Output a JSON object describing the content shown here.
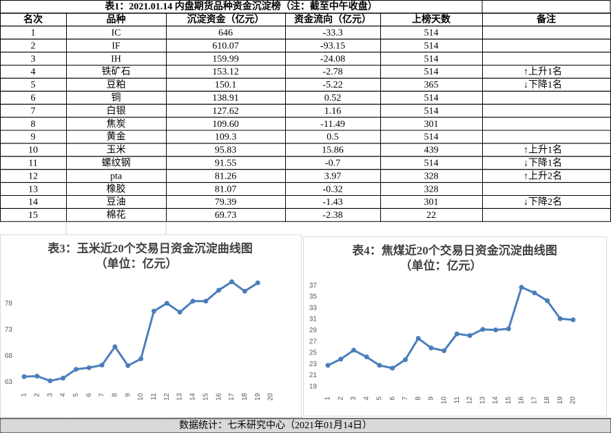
{
  "table": {
    "title": "表1：2021.01.14 内盘期货品种资金沉淀榜（注：截至中午收盘）",
    "header": [
      "名次",
      "品种",
      "沉淀资金（亿元）",
      "资金流向（亿元）",
      "上榜天数",
      "备注"
    ],
    "rows": [
      [
        "1",
        "IC",
        "646",
        "-33.3",
        "514",
        null
      ],
      [
        "2",
        "IF",
        "610.07",
        "-93.15",
        "514",
        null
      ],
      [
        "3",
        "IH",
        "159.99",
        "-24.08",
        "514",
        null
      ],
      [
        "4",
        "铁矿石",
        "153.12",
        "-2.78",
        "514",
        "↑上升1名"
      ],
      [
        "5",
        "豆粕",
        "150.1",
        "-5.22",
        "365",
        "↓下降1名"
      ],
      [
        "6",
        "铜",
        "138.91",
        "0.52",
        "514",
        null
      ],
      [
        "7",
        "白银",
        "127.62",
        "1.16",
        "514",
        null
      ],
      [
        "8",
        "焦炭",
        "109.60",
        "-11.49",
        "301",
        null
      ],
      [
        "9",
        "黄金",
        "109.3",
        "0.5",
        "514",
        null
      ],
      [
        "10",
        "玉米",
        "95.83",
        "15.86",
        "439",
        "↑上升1名"
      ],
      [
        "11",
        "螺纹钢",
        "91.55",
        "-0.7",
        "514",
        "↓下降1名"
      ],
      [
        "12",
        "pta",
        "81.26",
        "3.97",
        "328",
        "↑上升2名"
      ],
      [
        "13",
        "橡胶",
        "81.07",
        "-0.32",
        "328",
        null
      ],
      [
        "14",
        "豆油",
        "79.39",
        "-1.43",
        "301",
        "↓下降2名"
      ],
      [
        "15",
        "棉花",
        "69.73",
        "-2.38",
        "22",
        null
      ]
    ]
  },
  "chart_data": [
    {
      "type": "line",
      "title": "表3：玉米近20个交易日资金沉淀曲线图",
      "subtitle": "（单位：亿元）",
      "categories": [
        "1",
        "2",
        "3",
        "4",
        "5",
        "6",
        "7",
        "8",
        "9",
        "10",
        "11",
        "12",
        "13",
        "14",
        "15",
        "16",
        "17",
        "18",
        "19",
        "20"
      ],
      "values": [
        64.1,
        64.2,
        63.3,
        63.8,
        65.5,
        65.8,
        66.3,
        69.8,
        66.2,
        67.5,
        76.6,
        78.1,
        76.4,
        78.5,
        78.5,
        80.6,
        82.2,
        80.4,
        82.0,
        null
      ],
      "color": "#4a7ebb",
      "ylim": [
        61.5,
        84
      ],
      "yticks": [
        63,
        68,
        73,
        78
      ],
      "grid": false
    },
    {
      "type": "line",
      "title": "表4：焦煤近20个交易日资金沉淀曲线图",
      "subtitle": "（单位：亿元）",
      "categories": [
        "1",
        "2",
        "3",
        "4",
        "5",
        "6",
        "7",
        "8",
        "9",
        "10",
        "11",
        "12",
        "13",
        "14",
        "15",
        "16",
        "17",
        "18",
        "19",
        "20"
      ],
      "values": [
        22.8,
        23.9,
        25.5,
        24.3,
        22.8,
        22.3,
        23.8,
        27.6,
        25.9,
        25.4,
        28.4,
        28.1,
        29.2,
        29.1,
        29.3,
        36.7,
        35.7,
        34.3,
        31.1,
        30.9
      ],
      "color": "#4a7ebb",
      "ylim": [
        18,
        38
      ],
      "yticks": [
        19,
        21,
        23,
        25,
        27,
        29,
        31,
        33,
        35,
        37
      ],
      "grid": false
    }
  ],
  "footer": "数据统计：七禾研究中心（2021年01月14日）"
}
